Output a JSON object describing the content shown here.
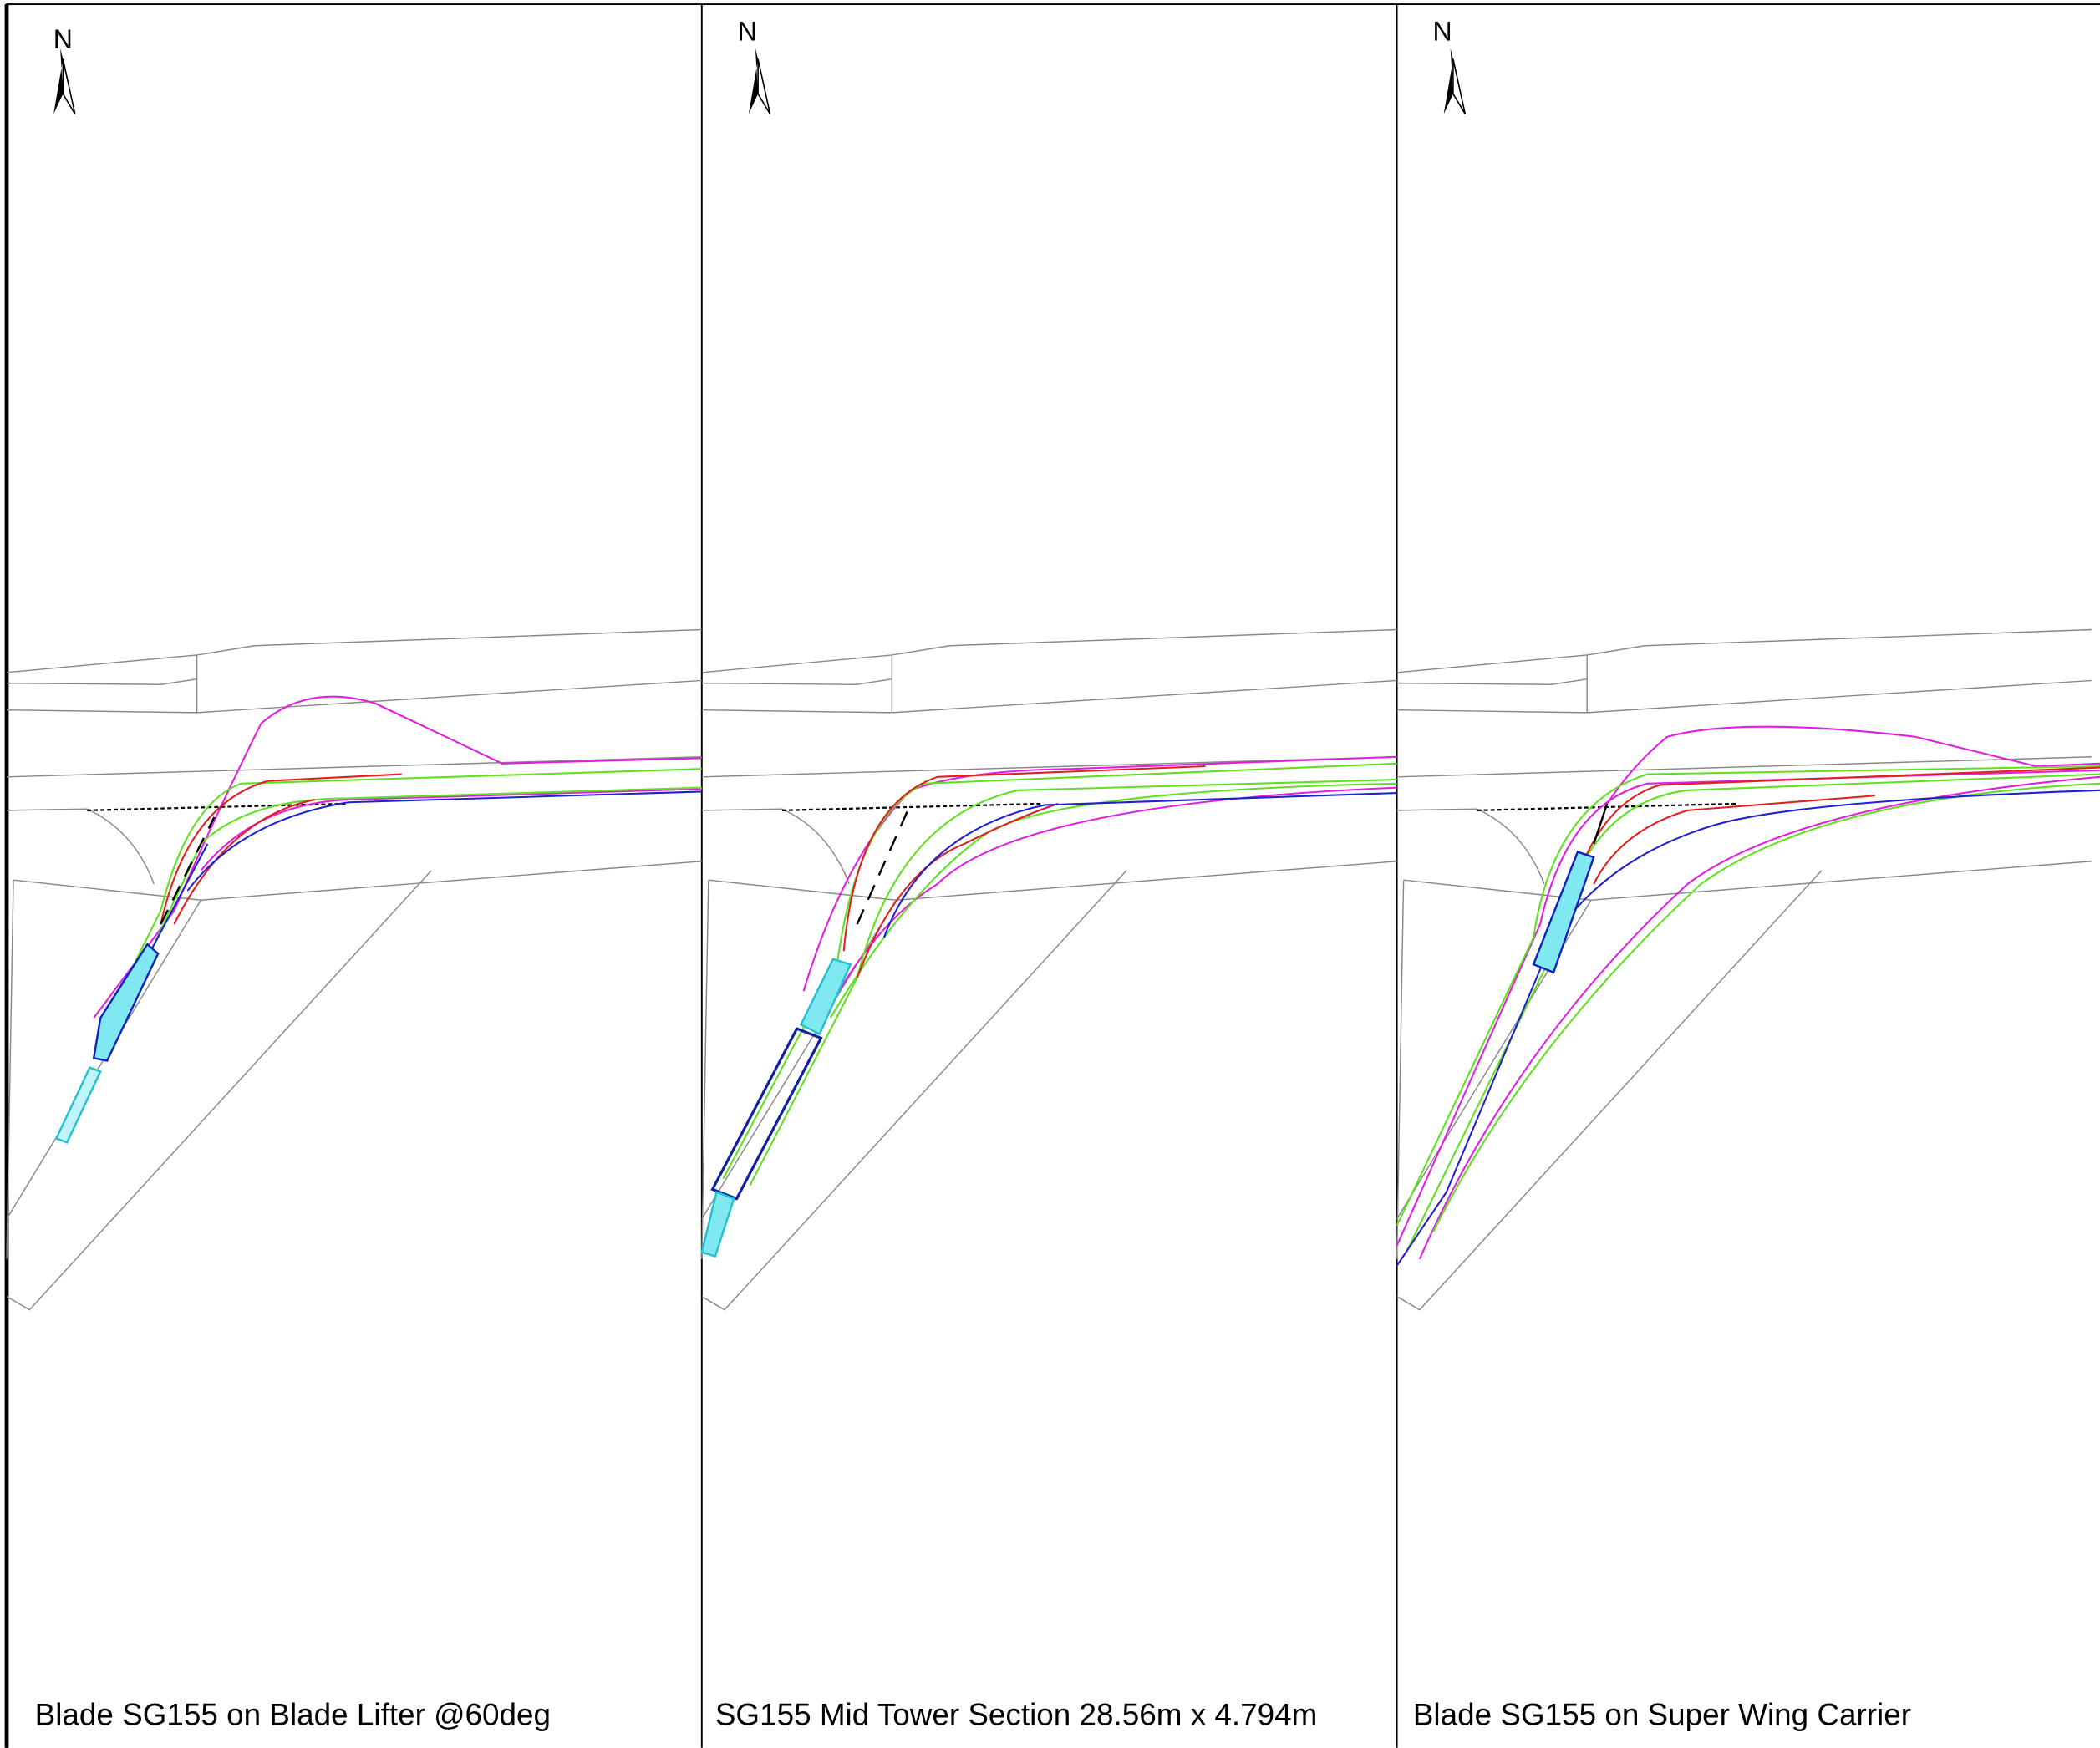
{
  "panels": [
    {
      "north": "N",
      "caption": "Blade SG155 on Blade Lifter @60deg"
    },
    {
      "north": "N",
      "caption": "SG155 Mid Tower Section 28.56m x 4.794m"
    },
    {
      "north": "N",
      "caption": "Blade SG155 on Super Wing Carrier"
    }
  ]
}
